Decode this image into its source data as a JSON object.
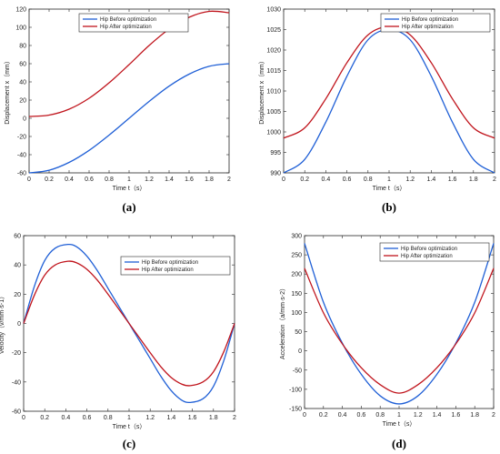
{
  "chart_data": [
    {
      "panel": "(a)",
      "type": "line",
      "xlabel": "Time t（s）",
      "ylabel": "Displacement x（mm）",
      "xlim": [
        0,
        2
      ],
      "ylim": [
        -60,
        120
      ],
      "xticks": [
        0,
        0.2,
        0.4,
        0.6,
        0.8,
        1,
        1.2,
        1.4,
        1.6,
        1.8,
        2
      ],
      "yticks": [
        -60,
        -40,
        -20,
        0,
        20,
        40,
        60,
        80,
        100,
        120
      ],
      "legend_position": "top-left",
      "series": [
        {
          "name": "Hip Before optimization",
          "color": "#1f5fd6",
          "x": [
            0,
            0.2,
            0.4,
            0.6,
            0.8,
            1.0,
            1.2,
            1.4,
            1.6,
            1.8,
            2.0
          ],
          "y": [
            -60,
            -57.1,
            -48.5,
            -35.3,
            -18.5,
            0,
            18.5,
            35.3,
            48.5,
            57.1,
            60
          ]
        },
        {
          "name": "Hip After optimization",
          "color": "#c0141c",
          "x": [
            0,
            0.2,
            0.4,
            0.6,
            0.8,
            1.0,
            1.2,
            1.4,
            1.6,
            1.8,
            2.0
          ],
          "y": [
            2,
            3.5,
            10,
            22,
            39,
            59,
            80,
            98,
            111,
            117.5,
            116
          ]
        }
      ]
    },
    {
      "panel": "(b)",
      "type": "line",
      "xlabel": "Time t（s）",
      "ylabel": "Displacement x（mm）",
      "xlim": [
        0,
        2
      ],
      "ylim": [
        990,
        1030
      ],
      "xticks": [
        0,
        0.2,
        0.4,
        0.6,
        0.8,
        1,
        1.2,
        1.4,
        1.6,
        1.8,
        2
      ],
      "yticks": [
        990,
        995,
        1000,
        1005,
        1010,
        1015,
        1020,
        1025,
        1030
      ],
      "legend_position": "top-right",
      "series": [
        {
          "name": "Hip Before optimization",
          "color": "#1f5fd6",
          "x": [
            0,
            0.2,
            0.4,
            0.6,
            0.8,
            1.0,
            1.2,
            1.4,
            1.6,
            1.8,
            2.0
          ],
          "y": [
            990,
            993.3,
            1002.4,
            1013.6,
            1022.5,
            1025,
            1022.5,
            1013.6,
            1002.4,
            993.3,
            990
          ]
        },
        {
          "name": "Hip After optimization",
          "color": "#c0141c",
          "x": [
            0,
            0.2,
            0.4,
            0.6,
            0.8,
            1.0,
            1.2,
            1.4,
            1.6,
            1.8,
            2.0
          ],
          "y": [
            998.5,
            1001,
            1008.1,
            1016.9,
            1023.7,
            1025.7,
            1023.7,
            1016.9,
            1008.1,
            1001,
            998.5
          ]
        }
      ]
    },
    {
      "panel": "(c)",
      "type": "line",
      "xlabel": "Time t（s）",
      "ylabel": "Velocity（v/mm·s-1）",
      "xlim": [
        0,
        2
      ],
      "ylim": [
        -60,
        60
      ],
      "xticks": [
        0,
        0.2,
        0.4,
        0.6,
        0.8,
        1,
        1.2,
        1.4,
        1.6,
        1.8,
        2
      ],
      "yticks": [
        -60,
        -40,
        -20,
        0,
        20,
        40,
        60
      ],
      "legend_position": "top-right",
      "series": [
        {
          "name": "Hip Before optimization",
          "color": "#1f5fd6",
          "x": [
            0,
            0.1,
            0.2,
            0.3,
            0.42,
            0.5,
            0.6,
            0.7,
            0.8,
            0.9,
            1.0,
            1.1,
            1.2,
            1.3,
            1.4,
            1.5,
            1.58,
            1.7,
            1.8,
            1.9,
            2.0
          ],
          "y": [
            0,
            25,
            43,
            51.5,
            54,
            52.5,
            46,
            36,
            24,
            12,
            0,
            -12,
            -24,
            -36,
            -46,
            -52.5,
            -54,
            -51.5,
            -43,
            -25,
            0
          ]
        },
        {
          "name": "Hip After optimization",
          "color": "#c0141c",
          "x": [
            0,
            0.1,
            0.2,
            0.3,
            0.42,
            0.5,
            0.6,
            0.7,
            0.8,
            0.9,
            1.0,
            1.1,
            1.2,
            1.3,
            1.4,
            1.5,
            1.58,
            1.7,
            1.8,
            1.9,
            2.0
          ],
          "y": [
            0,
            19,
            33,
            40,
            42.5,
            41.5,
            37,
            29.5,
            20,
            10,
            0,
            -10,
            -20,
            -29.5,
            -37,
            -41.5,
            -42.5,
            -40,
            -33,
            -19,
            0
          ]
        }
      ]
    },
    {
      "panel": "(d)",
      "type": "line",
      "xlabel": "Time t（s）",
      "ylabel": "Acceleration（a/mm·s-2）",
      "xlim": [
        0,
        2
      ],
      "ylim": [
        -150,
        300
      ],
      "xticks": [
        0,
        0.2,
        0.4,
        0.6,
        0.8,
        1,
        1.2,
        1.4,
        1.6,
        1.8,
        2
      ],
      "yticks": [
        -150,
        -100,
        -50,
        0,
        50,
        100,
        150,
        200,
        250,
        300
      ],
      "legend_position": "top-right",
      "series": [
        {
          "name": "Hip Before optimization",
          "color": "#1f5fd6",
          "x": [
            0,
            0.2,
            0.4,
            0.6,
            0.8,
            1.0,
            1.2,
            1.4,
            1.6,
            1.8,
            2.0
          ],
          "y": [
            280,
            126.5,
            20,
            -61,
            -117,
            -138,
            -117,
            -61,
            20,
            126.5,
            280
          ]
        },
        {
          "name": "Hip After optimization",
          "color": "#c0141c",
          "x": [
            0,
            0.2,
            0.4,
            0.6,
            0.8,
            1.0,
            1.2,
            1.4,
            1.6,
            1.8,
            2.0
          ],
          "y": [
            215,
            99,
            18,
            -44,
            -88,
            -110,
            -88,
            -44,
            18,
            99,
            215
          ]
        }
      ]
    }
  ]
}
